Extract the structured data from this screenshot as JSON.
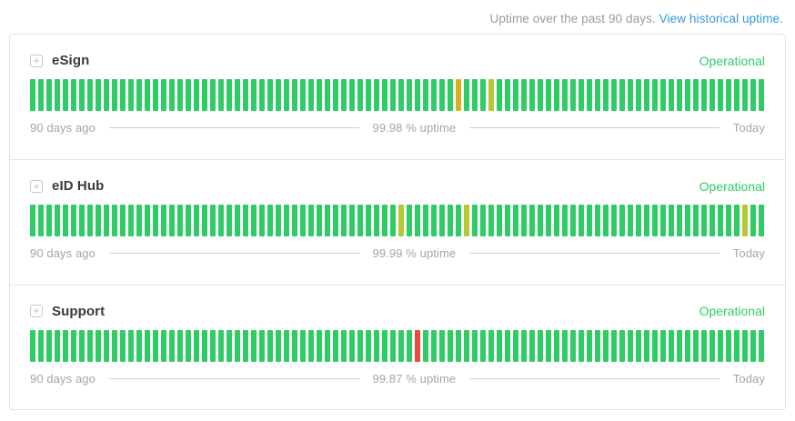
{
  "header": {
    "uptime_text": "Uptime over the past 90 days.",
    "link_text": "View historical uptime."
  },
  "palette": {
    "green": "#2fcc66",
    "gold": "#d4b31c",
    "lime": "#b4c934",
    "red": "#e74c3c"
  },
  "bars_total": 90,
  "status_color": "#2fcc66",
  "link_color": "#3498db",
  "services": [
    {
      "name": "eSign",
      "status": "Operational",
      "left_label": "90 days ago",
      "uptime_label": "99.98 % uptime",
      "right_label": "Today",
      "bar_overrides": {
        "52": "gold",
        "56": "lime"
      }
    },
    {
      "name": "eID Hub",
      "status": "Operational",
      "left_label": "90 days ago",
      "uptime_label": "99.99 % uptime",
      "right_label": "Today",
      "bar_overrides": {
        "45": "lime",
        "53": "lime",
        "87": "lime"
      }
    },
    {
      "name": "Support",
      "status": "Operational",
      "left_label": "90 days ago",
      "uptime_label": "99.87 % uptime",
      "right_label": "Today",
      "bar_overrides": {
        "47": "red"
      }
    }
  ]
}
